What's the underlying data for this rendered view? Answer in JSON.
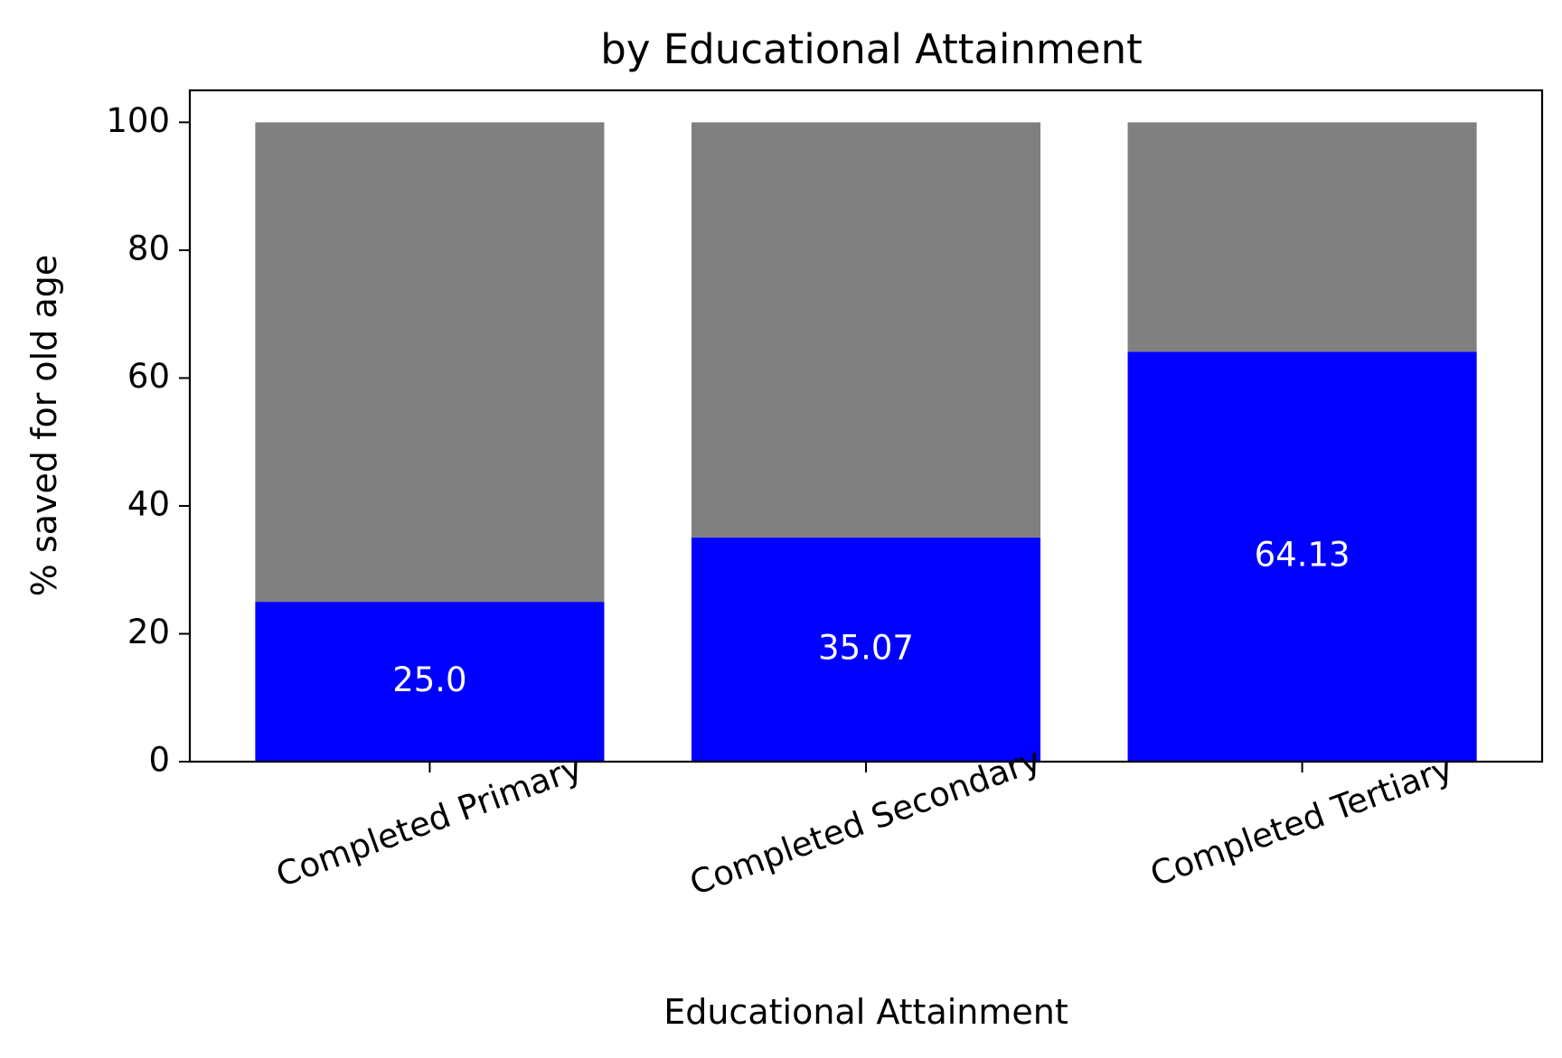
{
  "chart_data": {
    "type": "bar",
    "stacked": true,
    "title": "by Educational Attainment",
    "xlabel": "Educational Attainment",
    "ylabel": "% saved for old age",
    "categories": [
      "Completed Primary",
      "Completed Secondary",
      "Completed Tertiary"
    ],
    "series": [
      {
        "values": [
          25.0,
          35.07,
          64.13
        ],
        "color": "#0000ff"
      },
      {
        "values": [
          75.0,
          64.93,
          35.87
        ],
        "color": "#808080"
      }
    ],
    "data_labels": [
      "25.0",
      "35.07",
      "64.13"
    ],
    "ylim": [
      0,
      105
    ],
    "yticks": [
      "0",
      "20",
      "40",
      "60",
      "80",
      "100"
    ],
    "xtick_rotation_deg": -20,
    "grid": false,
    "legend": "none"
  }
}
